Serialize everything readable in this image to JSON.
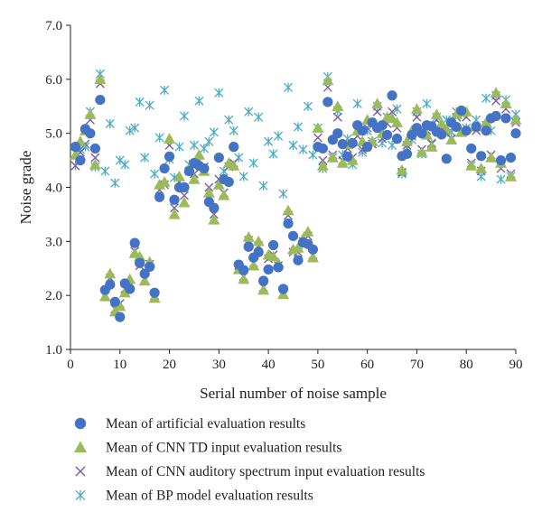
{
  "chart_data": {
    "type": "scatter",
    "title": "",
    "xlabel": "Serial number of noise sample",
    "ylabel": "Noise grade",
    "xlim": [
      0,
      90
    ],
    "ylim": [
      1.0,
      7.0
    ],
    "xticks": [
      "0",
      "10",
      "20",
      "30",
      "40",
      "50",
      "60",
      "70",
      "80",
      "90"
    ],
    "yticks": [
      "1.0",
      "2.0",
      "3.0",
      "4.0",
      "5.0",
      "6.0",
      "7.0"
    ],
    "grid": false,
    "legend_position": "bottom",
    "x": [
      1,
      2,
      3,
      4,
      5,
      6,
      7,
      8,
      9,
      10,
      11,
      12,
      13,
      14,
      15,
      16,
      17,
      18,
      19,
      20,
      21,
      22,
      23,
      24,
      25,
      26,
      27,
      28,
      29,
      30,
      31,
      32,
      33,
      34,
      35,
      36,
      37,
      38,
      39,
      40,
      41,
      42,
      43,
      44,
      45,
      46,
      47,
      48,
      49,
      50,
      51,
      52,
      53,
      54,
      55,
      56,
      57,
      58,
      59,
      60,
      61,
      62,
      63,
      64,
      65,
      66,
      67,
      68,
      69,
      70,
      71,
      72,
      73,
      74,
      75,
      76,
      77,
      78,
      79,
      80,
      81,
      82,
      83,
      84,
      85,
      86,
      87,
      88,
      89,
      90
    ],
    "series": [
      {
        "name": "Mean of artificial evaluation results",
        "marker": "circle",
        "color": "#4472c4",
        "values": [
          4.75,
          4.5,
          5.08,
          5.0,
          4.72,
          5.62,
          2.1,
          2.2,
          1.88,
          1.6,
          2.22,
          2.12,
          2.97,
          2.6,
          2.4,
          2.53,
          2.05,
          3.82,
          4.35,
          4.57,
          3.77,
          4.0,
          4.0,
          4.3,
          4.45,
          4.4,
          4.35,
          3.73,
          3.62,
          4.55,
          4.15,
          4.1,
          4.75,
          2.57,
          2.47,
          2.9,
          2.7,
          2.8,
          2.27,
          2.48,
          2.93,
          2.52,
          2.12,
          3.33,
          3.1,
          2.65,
          2.98,
          2.95,
          2.85,
          4.75,
          4.72,
          5.58,
          4.88,
          5.0,
          4.8,
          4.57,
          4.82,
          5.15,
          5.05,
          4.75,
          5.2,
          5.1,
          5.15,
          4.97,
          5.7,
          4.9,
          4.58,
          4.62,
          4.97,
          5.1,
          5.0,
          5.15,
          5.13,
          5.03,
          4.98,
          4.53,
          5.2,
          5.12,
          5.42,
          5.05,
          4.72,
          5.12,
          4.58,
          5.05,
          5.28,
          5.32,
          4.5,
          5.28,
          4.55,
          5.0
        ]
      },
      {
        "name": "Mean of CNN TD input evaluation results",
        "marker": "triangle",
        "color": "#9bbb59",
        "values": [
          4.6,
          4.85,
          5.05,
          5.35,
          4.42,
          6.0,
          1.98,
          2.4,
          1.7,
          1.8,
          2.05,
          2.3,
          2.78,
          2.72,
          2.27,
          2.62,
          1.95,
          4.05,
          4.1,
          4.9,
          3.5,
          4.2,
          3.72,
          4.35,
          4.15,
          4.6,
          4.3,
          3.9,
          3.4,
          4.05,
          3.85,
          4.45,
          4.4,
          2.48,
          2.3,
          3.08,
          2.55,
          3.0,
          2.1,
          2.75,
          2.72,
          2.6,
          2.02,
          3.57,
          2.85,
          2.88,
          3.05,
          3.18,
          2.7,
          5.1,
          4.4,
          5.98,
          4.55,
          5.5,
          4.45,
          4.8,
          4.5,
          5.05,
          4.85,
          5.25,
          4.85,
          5.55,
          5.0,
          5.3,
          5.28,
          5.2,
          4.32,
          4.85,
          5.05,
          5.45,
          4.65,
          4.97,
          4.75,
          5.35,
          5.18,
          5.08,
          4.88,
          5.35,
          5.02,
          5.4,
          4.4,
          5.12,
          4.35,
          5.2,
          4.55,
          5.75,
          4.45,
          5.55,
          4.2,
          5.25
        ]
      },
      {
        "name": "Mean of CNN auditory spectrum input evaluation results",
        "marker": "x",
        "color": "#7a5ca8",
        "values": [
          4.4,
          4.65,
          4.8,
          5.25,
          4.55,
          5.92,
          2.0,
          2.32,
          1.75,
          1.85,
          2.12,
          2.18,
          2.82,
          2.55,
          2.3,
          2.58,
          2.0,
          3.95,
          4.05,
          4.78,
          3.62,
          4.1,
          3.85,
          4.3,
          4.25,
          4.5,
          4.38,
          4.0,
          3.5,
          4.15,
          3.9,
          4.38,
          4.45,
          2.55,
          2.35,
          3.02,
          2.6,
          2.92,
          2.15,
          2.68,
          2.75,
          2.55,
          2.05,
          3.48,
          2.8,
          2.8,
          3.0,
          3.1,
          2.75,
          4.92,
          4.5,
          5.85,
          4.6,
          5.3,
          4.5,
          4.72,
          4.55,
          4.95,
          4.7,
          5.1,
          4.8,
          5.4,
          4.9,
          5.18,
          5.4,
          5.1,
          4.28,
          4.78,
          4.95,
          5.3,
          4.7,
          5.05,
          4.82,
          5.25,
          5.08,
          5.0,
          4.9,
          5.3,
          5.05,
          5.3,
          4.45,
          5.05,
          4.3,
          5.15,
          4.6,
          5.6,
          4.35,
          5.45,
          4.25,
          5.2
        ]
      },
      {
        "name": "Mean of BP model evaluation results",
        "marker": "asterisk",
        "color": "#4bacc6",
        "values": [
          4.4,
          4.7,
          4.75,
          5.4,
          4.38,
          6.1,
          4.3,
          5.18,
          4.08,
          4.5,
          4.42,
          5.05,
          5.1,
          5.58,
          4.55,
          5.52,
          4.25,
          4.92,
          5.8,
          4.52,
          4.18,
          4.75,
          5.32,
          4.42,
          4.78,
          5.6,
          4.72,
          4.85,
          5.02,
          5.75,
          4.3,
          5.25,
          5.05,
          4.55,
          4.2,
          5.4,
          4.45,
          5.3,
          4.03,
          4.85,
          4.62,
          4.95,
          3.88,
          5.85,
          4.78,
          5.12,
          4.7,
          5.5,
          4.6,
          5.1,
          4.35,
          6.05,
          4.55,
          5.42,
          4.6,
          4.9,
          4.42,
          5.55,
          4.65,
          5.05,
          4.85,
          5.5,
          4.82,
          5.3,
          4.78,
          5.45,
          4.25,
          4.72,
          4.88,
          5.4,
          4.62,
          5.55,
          4.8,
          5.3,
          5.05,
          5.25,
          5.02,
          5.4,
          5.35,
          5.1,
          4.4,
          5.25,
          4.2,
          5.65,
          5.05,
          5.7,
          4.15,
          5.62,
          4.2,
          5.35
        ]
      }
    ]
  }
}
